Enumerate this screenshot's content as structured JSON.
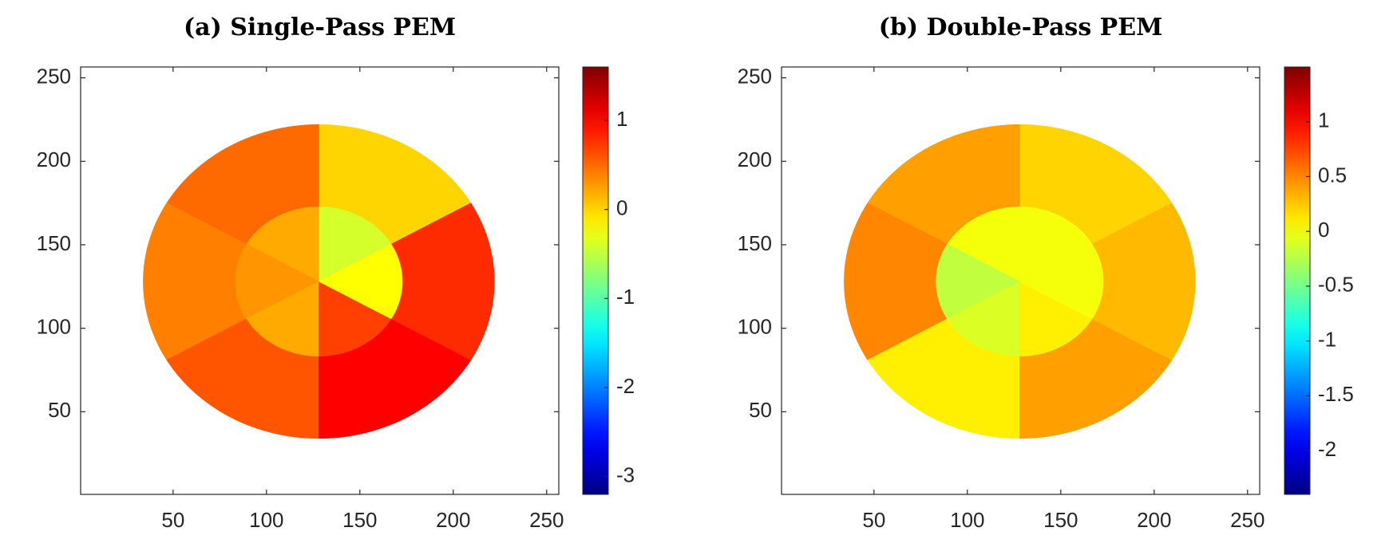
{
  "chart_data": [
    {
      "type": "heatmap",
      "title": "(a) Single-Pass PEM",
      "colormap": "jet",
      "xlim": [
        0.5,
        256.5
      ],
      "ylim": [
        0.5,
        256.5
      ],
      "xticks": [
        50,
        100,
        150,
        200,
        250
      ],
      "yticks": [
        50,
        100,
        150,
        200,
        250
      ],
      "center": [
        128,
        128
      ],
      "r": [
        0,
        45,
        94
      ],
      "theta": [
        30,
        90,
        150,
        210,
        270,
        330,
        390
      ],
      "z": [
        [
          -0.4,
          0.2,
          0.3,
          0.2,
          0.7,
          -0.2
        ],
        [
          0.0,
          0.5,
          0.4,
          0.6,
          1.0,
          0.8
        ]
      ],
      "clim": [
        -3.2,
        1.6
      ],
      "cticks": [
        -3,
        -2,
        -1,
        0,
        1
      ]
    },
    {
      "type": "heatmap",
      "title": "(b) Double-Pass PEM",
      "colormap": "jet",
      "xlim": [
        0.5,
        256.5
      ],
      "ylim": [
        0.5,
        256.5
      ],
      "xticks": [
        50,
        100,
        150,
        200,
        250
      ],
      "yticks": [
        50,
        100,
        150,
        200,
        250
      ],
      "center": [
        128,
        128
      ],
      "r": [
        0,
        45,
        94
      ],
      "theta": [
        30,
        90,
        150,
        210,
        270,
        330,
        390
      ],
      "z": [
        [
          0.0,
          0.0,
          -0.2,
          -0.1,
          0.1,
          0.0
        ],
        [
          0.2,
          0.4,
          0.5,
          0.1,
          0.4,
          0.3
        ]
      ],
      "clim": [
        -2.4,
        1.5
      ],
      "cticks": [
        -2,
        -1.5,
        -1,
        -0.5,
        0,
        0.5,
        1
      ]
    }
  ]
}
